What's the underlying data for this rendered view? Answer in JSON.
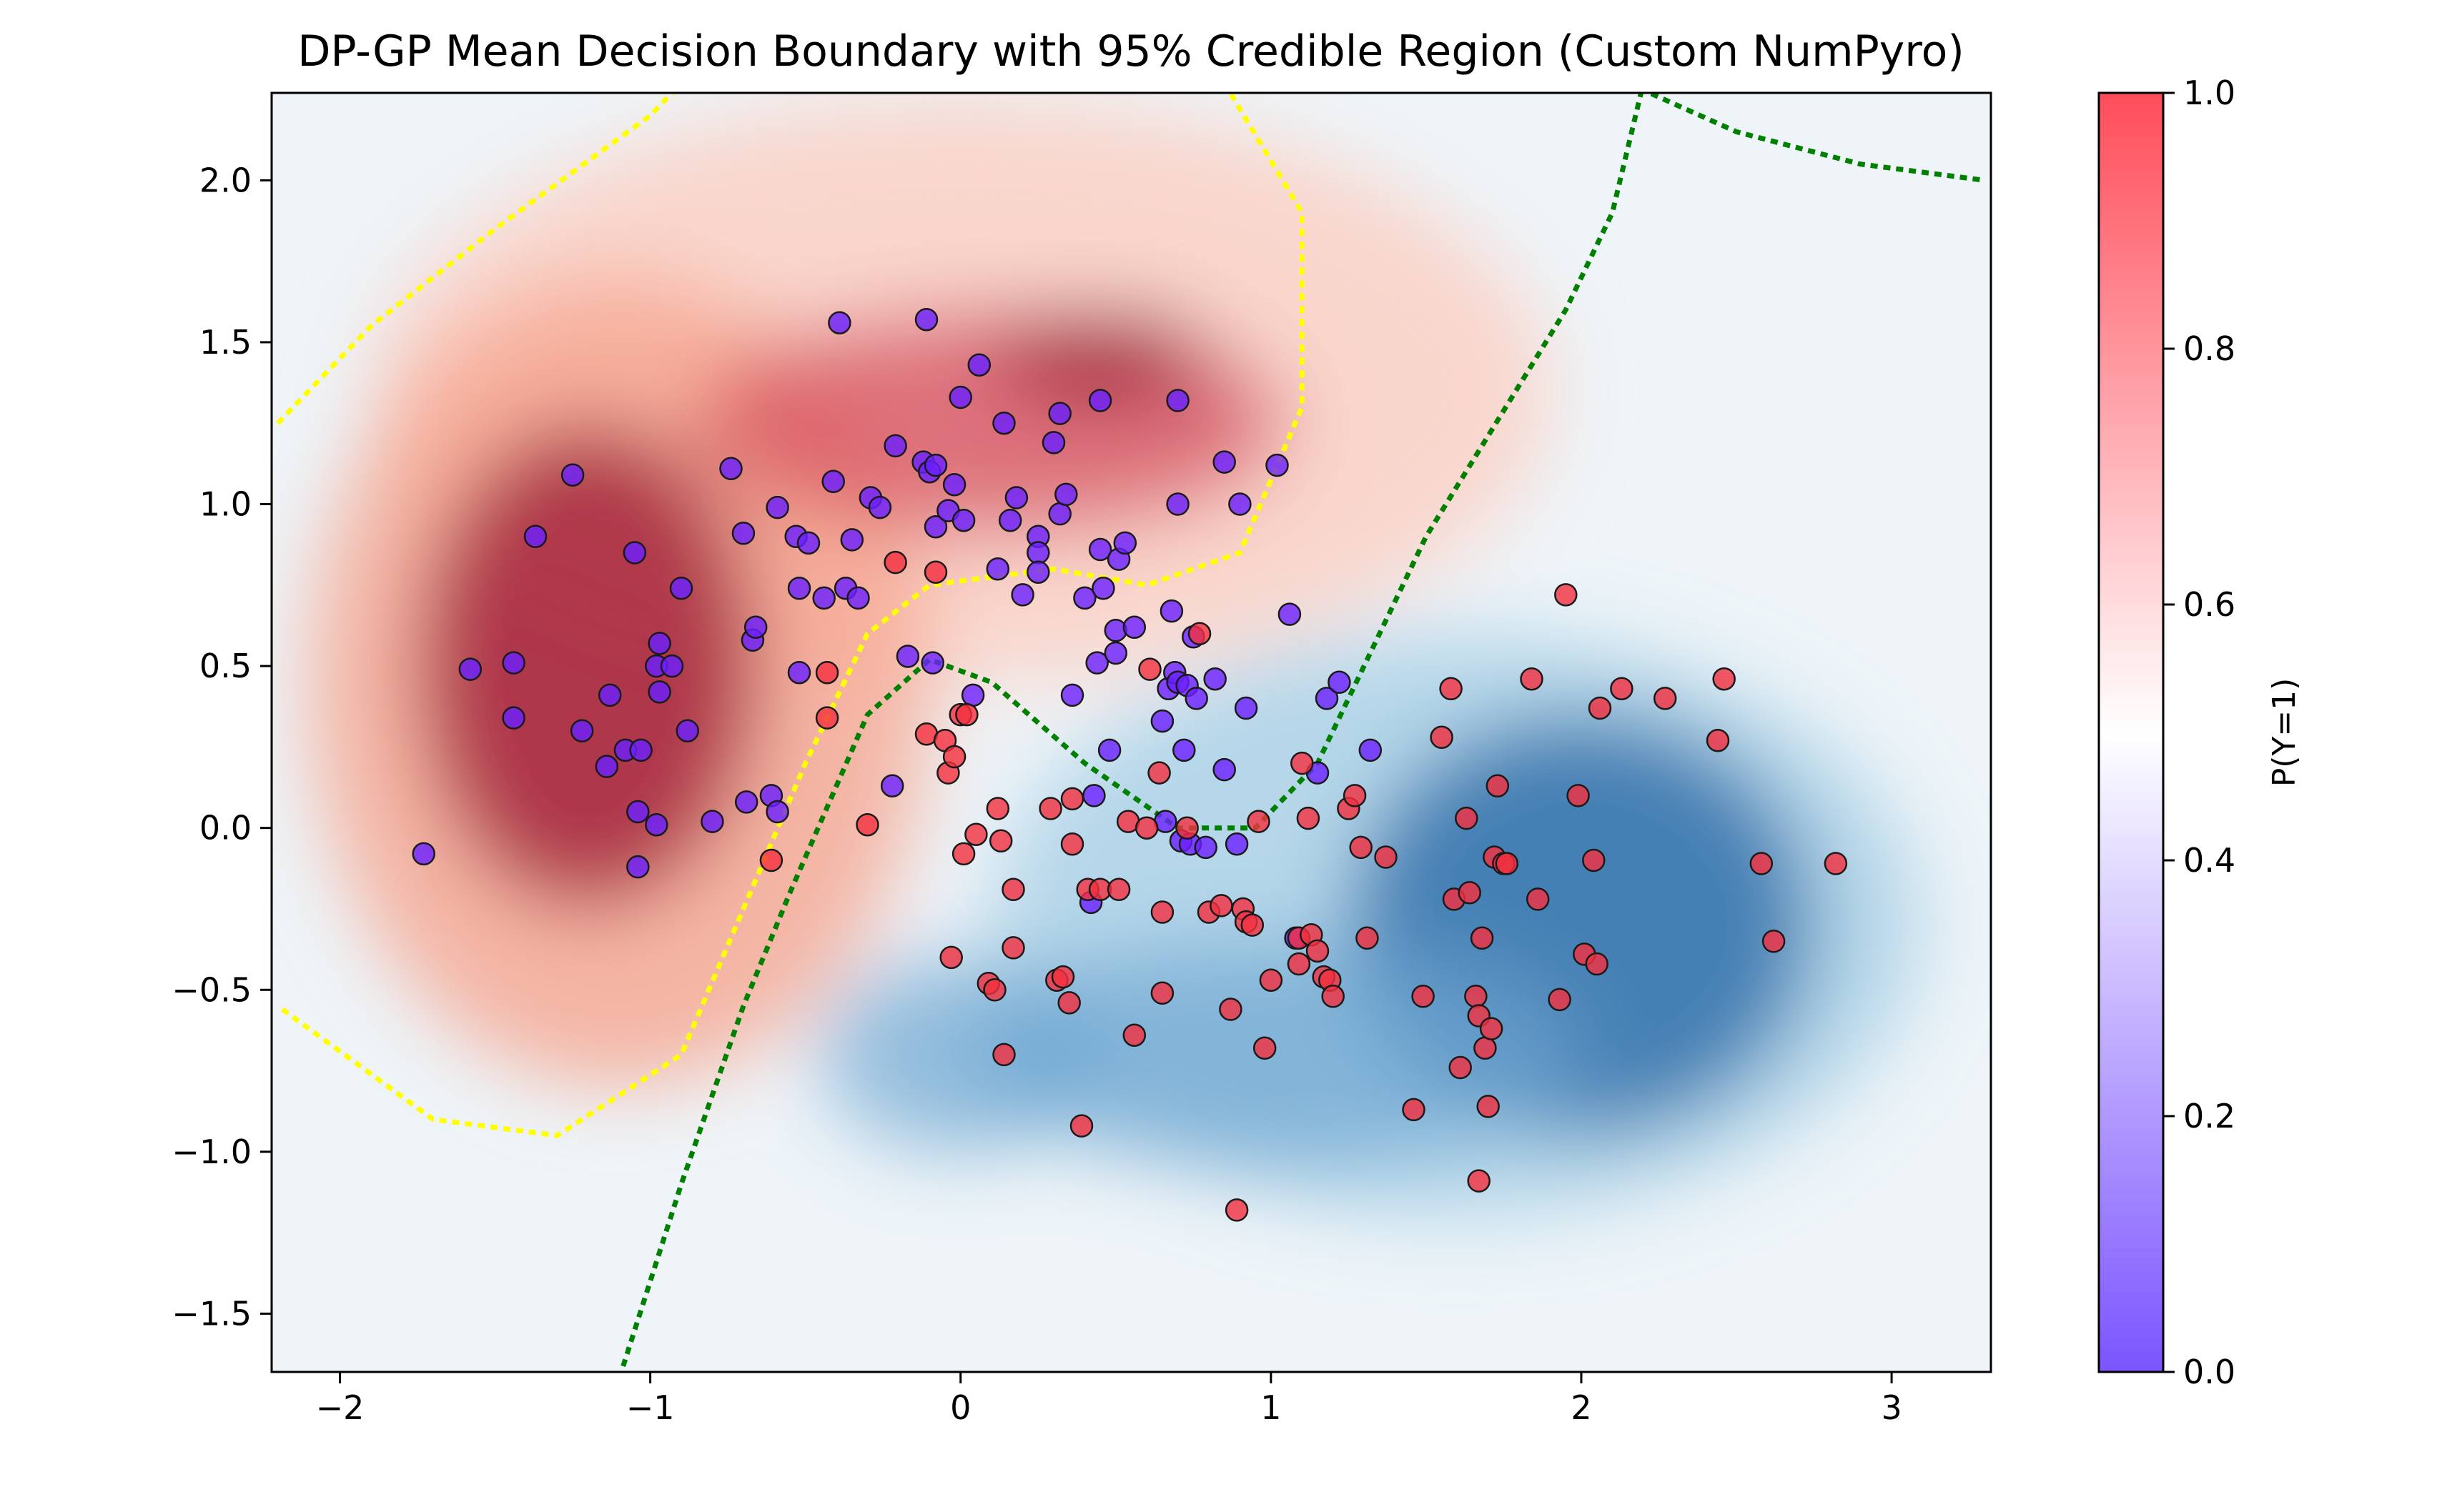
{
  "chart_data": {
    "type": "scatter",
    "title": "DP-GP Mean Decision Boundary with 95% Credible Region (Custom NumPyro)",
    "xlabel": "",
    "ylabel": "",
    "xlim": [
      -2.22,
      3.32
    ],
    "ylim": [
      -1.68,
      2.27
    ],
    "x_ticks": [
      -2,
      -1,
      0,
      1,
      2,
      3
    ],
    "x_tick_labels": [
      "−2",
      "−1",
      "0",
      "1",
      "2",
      "3"
    ],
    "y_ticks": [
      -1.5,
      -1.0,
      -0.5,
      0.0,
      0.5,
      1.0,
      1.5,
      2.0
    ],
    "y_tick_labels": [
      "−1.5",
      "−1.0",
      "−0.5",
      "0.0",
      "0.5",
      "1.0",
      "1.5",
      "2.0"
    ],
    "colorbar": {
      "label": "P(Y=1)",
      "range": [
        0.0,
        1.0
      ],
      "ticks": [
        0.0,
        0.2,
        0.4,
        0.6,
        0.8,
        1.0
      ],
      "tick_labels": [
        "0.0",
        "0.2",
        "0.4",
        "0.6",
        "0.8",
        "1.0"
      ],
      "colors": [
        "#7b54ff",
        "#ffffff",
        "#ff4d5a"
      ]
    },
    "background_colormap": {
      "class0_color": "#2b6ca8",
      "class1_color": "#9e1a36",
      "boundary_color": "#fff0ee"
    },
    "contours": {
      "credible_upper_color": "#ffff00",
      "credible_lower_color": "#008000"
    },
    "series": [
      {
        "class": 0,
        "color": "#6a1fff",
        "points": [
          [
            -1.73,
            -0.08
          ],
          [
            -1.58,
            0.49
          ],
          [
            -1.44,
            0.51
          ],
          [
            -1.44,
            0.34
          ],
          [
            -1.37,
            0.9
          ],
          [
            -1.25,
            1.09
          ],
          [
            -1.22,
            0.3
          ],
          [
            -1.14,
            0.19
          ],
          [
            -1.13,
            0.41
          ],
          [
            -1.08,
            0.24
          ],
          [
            -1.05,
            0.85
          ],
          [
            -1.04,
            0.05
          ],
          [
            -1.04,
            -0.12
          ],
          [
            -1.03,
            0.24
          ],
          [
            -0.98,
            0.01
          ],
          [
            -0.98,
            0.5
          ],
          [
            -0.97,
            0.57
          ],
          [
            -0.97,
            0.42
          ],
          [
            -0.93,
            0.5
          ],
          [
            -0.9,
            0.74
          ],
          [
            -0.88,
            0.3
          ],
          [
            -0.8,
            0.02
          ],
          [
            -0.74,
            1.11
          ],
          [
            -0.7,
            0.91
          ],
          [
            -0.69,
            0.08
          ],
          [
            -0.67,
            0.58
          ],
          [
            -0.66,
            0.62
          ],
          [
            -0.61,
            0.1
          ],
          [
            -0.59,
            0.05
          ],
          [
            -0.59,
            0.99
          ],
          [
            -0.53,
            0.9
          ],
          [
            -0.52,
            0.48
          ],
          [
            -0.52,
            0.74
          ],
          [
            -0.49,
            0.88
          ],
          [
            -0.44,
            0.71
          ],
          [
            -0.41,
            1.07
          ],
          [
            -0.39,
            1.56
          ],
          [
            -0.37,
            0.74
          ],
          [
            -0.35,
            0.89
          ],
          [
            -0.33,
            0.71
          ],
          [
            -0.29,
            1.02
          ],
          [
            -0.26,
            0.99
          ],
          [
            -0.22,
            0.13
          ],
          [
            -0.21,
            1.18
          ],
          [
            -0.17,
            0.53
          ],
          [
            -0.12,
            1.13
          ],
          [
            -0.11,
            1.57
          ],
          [
            -0.1,
            1.1
          ],
          [
            -0.09,
            0.51
          ],
          [
            -0.08,
            0.93
          ],
          [
            -0.08,
            1.12
          ],
          [
            -0.04,
            0.98
          ],
          [
            -0.02,
            1.06
          ],
          [
            0.01,
            0.95
          ],
          [
            0.04,
            0.41
          ],
          [
            0.06,
            1.43
          ],
          [
            0.12,
            0.8
          ],
          [
            0.14,
            1.25
          ],
          [
            0.16,
            0.95
          ],
          [
            0.18,
            1.02
          ],
          [
            0.2,
            0.72
          ],
          [
            0.25,
            0.9
          ],
          [
            0.25,
            0.85
          ],
          [
            0.25,
            0.79
          ],
          [
            0.3,
            1.19
          ],
          [
            0.32,
            1.28
          ],
          [
            0.32,
            0.97
          ],
          [
            0.34,
            1.03
          ],
          [
            0.36,
            0.41
          ],
          [
            0.4,
            0.71
          ],
          [
            0.42,
            -0.23
          ],
          [
            0.43,
            0.1
          ],
          [
            0.44,
            0.51
          ],
          [
            0.45,
            1.32
          ],
          [
            0.45,
            0.86
          ],
          [
            0.46,
            0.74
          ],
          [
            0.48,
            0.24
          ],
          [
            0.5,
            0.54
          ],
          [
            0.5,
            0.61
          ],
          [
            0.51,
            0.83
          ],
          [
            0.53,
            0.88
          ],
          [
            0.56,
            0.62
          ],
          [
            0.65,
            0.33
          ],
          [
            0.66,
            0.02
          ],
          [
            0.67,
            0.43
          ],
          [
            0.68,
            0.67
          ],
          [
            0.69,
            0.48
          ],
          [
            0.7,
            0.45
          ],
          [
            0.7,
            1.32
          ],
          [
            0.7,
            1.0
          ],
          [
            0.71,
            -0.04
          ],
          [
            0.72,
            0.24
          ],
          [
            0.73,
            0.44
          ],
          [
            0.74,
            -0.05
          ],
          [
            0.75,
            0.59
          ],
          [
            0.76,
            0.4
          ],
          [
            0.79,
            -0.06
          ],
          [
            0.82,
            0.46
          ],
          [
            0.85,
            0.18
          ],
          [
            0.85,
            1.13
          ],
          [
            0.89,
            -0.05
          ],
          [
            0.9,
            1.0
          ],
          [
            0.92,
            0.37
          ],
          [
            1.02,
            1.12
          ],
          [
            1.06,
            0.66
          ],
          [
            1.08,
            -0.34
          ],
          [
            1.15,
            0.17
          ],
          [
            1.18,
            0.4
          ],
          [
            1.22,
            0.45
          ],
          [
            1.32,
            0.24
          ],
          [
            0.0,
            1.33
          ]
        ]
      },
      {
        "class": 1,
        "color": "#f4303e",
        "points": [
          [
            -0.61,
            -0.1
          ],
          [
            -0.43,
            0.48
          ],
          [
            -0.43,
            0.34
          ],
          [
            -0.3,
            0.01
          ],
          [
            -0.21,
            0.82
          ],
          [
            -0.11,
            0.29
          ],
          [
            -0.08,
            0.79
          ],
          [
            -0.05,
            0.27
          ],
          [
            -0.04,
            0.17
          ],
          [
            -0.02,
            0.22
          ],
          [
            0.0,
            0.35
          ],
          [
            0.02,
            0.35
          ],
          [
            -0.03,
            -0.4
          ],
          [
            0.01,
            -0.08
          ],
          [
            0.05,
            -0.02
          ],
          [
            0.09,
            -0.48
          ],
          [
            0.11,
            -0.5
          ],
          [
            0.12,
            0.06
          ],
          [
            0.13,
            -0.04
          ],
          [
            0.14,
            -0.7
          ],
          [
            0.17,
            -0.19
          ],
          [
            0.17,
            -0.37
          ],
          [
            0.29,
            0.06
          ],
          [
            0.31,
            -0.47
          ],
          [
            0.33,
            -0.46
          ],
          [
            0.35,
            -0.54
          ],
          [
            0.36,
            0.09
          ],
          [
            0.36,
            -0.05
          ],
          [
            0.39,
            -0.92
          ],
          [
            0.41,
            -0.19
          ],
          [
            0.45,
            -0.19
          ],
          [
            0.51,
            -0.19
          ],
          [
            0.54,
            0.02
          ],
          [
            0.56,
            -0.64
          ],
          [
            0.6,
            0.0
          ],
          [
            0.61,
            0.49
          ],
          [
            0.64,
            0.17
          ],
          [
            0.65,
            -0.26
          ],
          [
            0.65,
            -0.51
          ],
          [
            0.73,
            0.0
          ],
          [
            0.77,
            0.6
          ],
          [
            0.8,
            -0.26
          ],
          [
            0.84,
            -0.24
          ],
          [
            0.87,
            -0.56
          ],
          [
            0.89,
            -1.18
          ],
          [
            0.91,
            -0.25
          ],
          [
            0.92,
            -0.29
          ],
          [
            0.94,
            -0.3
          ],
          [
            0.96,
            0.02
          ],
          [
            0.98,
            -0.68
          ],
          [
            1.0,
            -0.47
          ],
          [
            1.09,
            -0.42
          ],
          [
            1.09,
            -0.34
          ],
          [
            1.1,
            0.2
          ],
          [
            1.12,
            0.03
          ],
          [
            1.13,
            -0.33
          ],
          [
            1.15,
            -0.38
          ],
          [
            1.17,
            -0.46
          ],
          [
            1.19,
            -0.47
          ],
          [
            1.2,
            -0.52
          ],
          [
            1.25,
            0.06
          ],
          [
            1.27,
            0.1
          ],
          [
            1.29,
            -0.06
          ],
          [
            1.31,
            -0.34
          ],
          [
            1.37,
            -0.09
          ],
          [
            1.46,
            -0.87
          ],
          [
            1.49,
            -0.52
          ],
          [
            1.55,
            0.28
          ],
          [
            1.59,
            -0.22
          ],
          [
            1.63,
            0.03
          ],
          [
            1.64,
            -0.2
          ],
          [
            1.66,
            -0.52
          ],
          [
            1.67,
            -0.58
          ],
          [
            1.68,
            -0.34
          ],
          [
            1.69,
            -0.68
          ],
          [
            1.7,
            -0.86
          ],
          [
            1.71,
            -0.62
          ],
          [
            1.72,
            -0.09
          ],
          [
            1.73,
            0.13
          ],
          [
            1.75,
            -0.11
          ],
          [
            1.76,
            -0.11
          ],
          [
            1.84,
            0.46
          ],
          [
            1.86,
            -0.22
          ],
          [
            1.93,
            -0.53
          ],
          [
            1.95,
            0.72
          ],
          [
            1.99,
            0.1
          ],
          [
            2.01,
            -0.39
          ],
          [
            2.04,
            -0.1
          ],
          [
            2.05,
            -0.42
          ],
          [
            2.06,
            0.37
          ],
          [
            2.13,
            0.43
          ],
          [
            2.27,
            0.4
          ],
          [
            2.44,
            0.27
          ],
          [
            2.46,
            0.46
          ],
          [
            2.58,
            -0.11
          ],
          [
            2.62,
            -0.35
          ],
          [
            2.82,
            -0.11
          ],
          [
            1.61,
            -0.74
          ],
          [
            1.67,
            -1.09
          ],
          [
            1.58,
            0.43
          ]
        ]
      }
    ]
  }
}
